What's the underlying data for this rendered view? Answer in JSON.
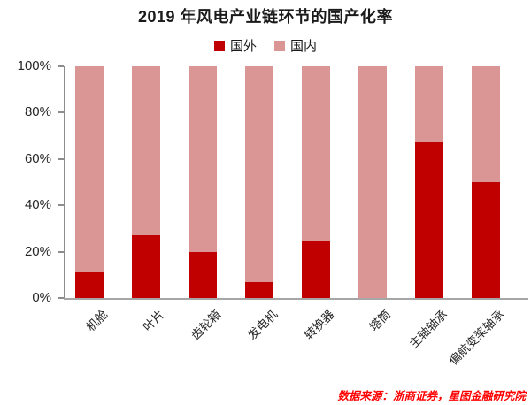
{
  "chart_data": {
    "type": "bar",
    "stacked": true,
    "title": "2019 年风电产业链环节的国产化率",
    "categories": [
      "机舱",
      "叶片",
      "齿轮箱",
      "发电机",
      "转换器",
      "塔筒",
      "主轴轴承",
      "偏航变桨轴承"
    ],
    "series": [
      {
        "name": "国外",
        "color": "#C00000",
        "values": [
          11,
          27,
          20,
          7,
          25,
          0,
          67,
          50
        ]
      },
      {
        "name": "国内",
        "color": "#D99694",
        "values": [
          89,
          73,
          80,
          93,
          75,
          100,
          33,
          50
        ]
      }
    ],
    "xlabel": "",
    "ylabel": "",
    "ylim": [
      0,
      100
    ],
    "yticks": [
      "0%",
      "20%",
      "40%",
      "60%",
      "80%",
      "100%"
    ],
    "grid": false,
    "legend_position": "top"
  },
  "source_note": "数据来源：浙商证券，星图金融研究院",
  "colors": {
    "foreign": "#C00000",
    "domestic": "#D99694",
    "axis_line": "#A6A6A6",
    "title_text": "#1A1A1A",
    "source_text": "#FF0000"
  }
}
